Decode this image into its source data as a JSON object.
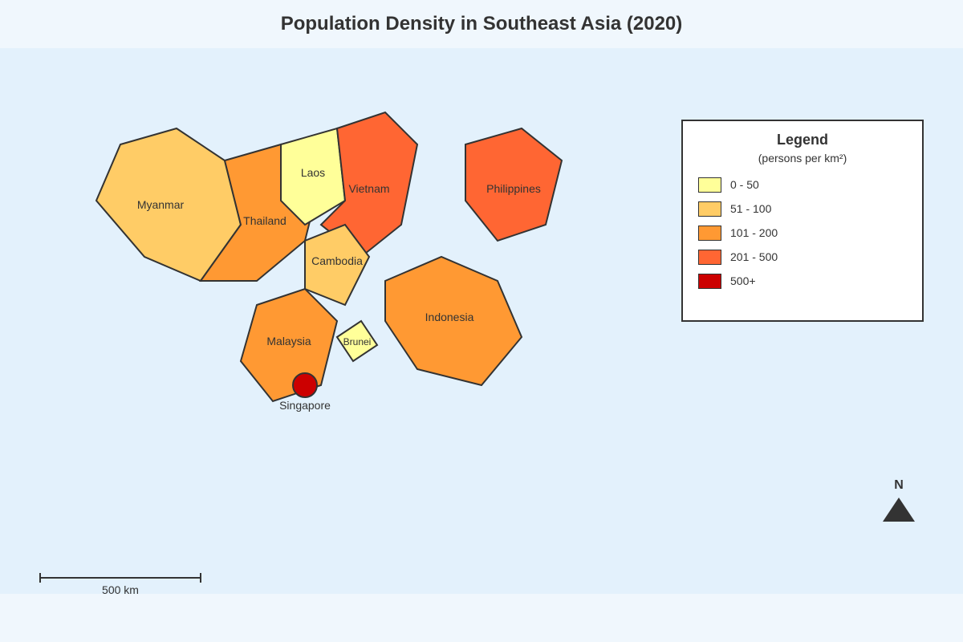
{
  "title": "Population Density in Southeast Asia (2020)",
  "colors": {
    "background": "#e3f1fc",
    "stroke": "#333333",
    "d0_50": "#ffff99",
    "d51_100": "#ffcc66",
    "d101_200": "#ff9933",
    "d201_500": "#ff6633",
    "d500_plus": "#cc0000"
  },
  "legend": {
    "title": "Legend",
    "subtitle": "(persons per km²)",
    "items": [
      {
        "label": "0 - 50",
        "color": "#ffff99"
      },
      {
        "label": "51 - 100",
        "color": "#ffcc66"
      },
      {
        "label": "101 - 200",
        "color": "#ff9933"
      },
      {
        "label": "201 - 500",
        "color": "#ff6633"
      },
      {
        "label": "500+",
        "color": "#cc0000"
      }
    ]
  },
  "countries": {
    "myanmar": {
      "label": "Myanmar",
      "color": "#ffcc66"
    },
    "thailand": {
      "label": "Thailand",
      "color": "#ff9933"
    },
    "laos": {
      "label": "Laos",
      "color": "#ffff99"
    },
    "vietnam": {
      "label": "Vietnam",
      "color": "#ff6633"
    },
    "cambodia": {
      "label": "Cambodia",
      "color": "#ffcc66"
    },
    "philippines": {
      "label": "Philippines",
      "color": "#ff6633"
    },
    "malaysia": {
      "label": "Malaysia",
      "color": "#ff9933"
    },
    "brunei": {
      "label": "Brunei",
      "color": "#ffff99"
    },
    "indonesia": {
      "label": "Indonesia",
      "color": "#ff9933"
    },
    "singapore": {
      "label": "Singapore",
      "color": "#cc0000"
    }
  },
  "compass": {
    "label": "N"
  },
  "scale_bar": {
    "label": "500 km"
  }
}
